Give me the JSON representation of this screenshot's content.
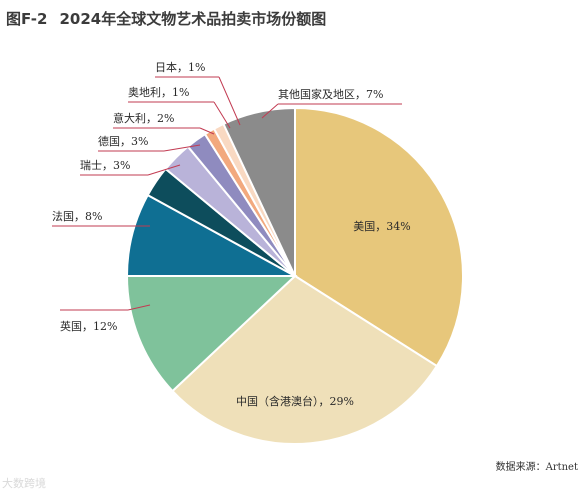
{
  "header": {
    "figure_label": "图F-2",
    "title": "2024年全球文物艺术品拍卖市场份额图"
  },
  "source": "数据来源：Artnet",
  "watermark": "大数跨境",
  "chart_data": {
    "type": "pie",
    "title": "2024年全球文物艺术品拍卖市场份额图",
    "unit": "%",
    "slices": [
      {
        "name": "美国",
        "label": "美国，34%",
        "value": 34,
        "color": "#e7c77b"
      },
      {
        "name": "中国（含港澳台）",
        "label": "中国（含港澳台），29%",
        "value": 29,
        "color": "#efe0b9"
      },
      {
        "name": "英国",
        "label": "英国，12%",
        "value": 12,
        "color": "#7fc29b"
      },
      {
        "name": "法国",
        "label": "法国，8%",
        "value": 8,
        "color": "#0f6f93"
      },
      {
        "name": "瑞士",
        "label": "瑞士，3%",
        "value": 3,
        "color": "#0d4d5c"
      },
      {
        "name": "德国",
        "label": "德国，3%",
        "value": 3,
        "color": "#b9b3d9"
      },
      {
        "name": "意大利",
        "label": "意大利，2%",
        "value": 2,
        "color": "#8f8bbf"
      },
      {
        "name": "奥地利",
        "label": "奥地利，1%",
        "value": 1,
        "color": "#f2a97e"
      },
      {
        "name": "日本",
        "label": "日本，1%",
        "value": 1,
        "color": "#f9d9c2"
      },
      {
        "name": "其他国家及地区",
        "label": "其他国家及地区，7%",
        "value": 7,
        "color": "#8b8b8b"
      }
    ]
  }
}
